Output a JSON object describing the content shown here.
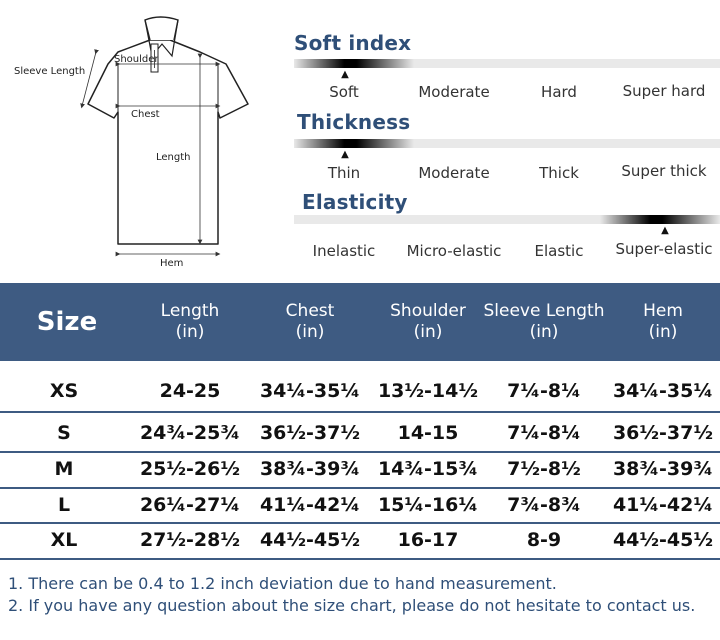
{
  "diagram": {
    "labels": {
      "sleeve_length": "Sleeve Length",
      "shoulder": "Shoulder",
      "chest": "Chest",
      "length": "Length",
      "hem": "Hem"
    }
  },
  "indices": [
    {
      "title": "Soft index",
      "options": [
        "Soft",
        "Moderate",
        "Hard",
        "Super hard"
      ],
      "selected_index": 0
    },
    {
      "title": "Thickness",
      "options": [
        "Thin",
        "Moderate",
        "Thick",
        "Super thick"
      ],
      "selected_index": 0
    },
    {
      "title": "Elasticity",
      "options": [
        "Inelastic",
        "Micro-elastic",
        "Elastic",
        "Super-elastic"
      ],
      "selected_index": 3
    }
  ],
  "table": {
    "headers": [
      {
        "line1": "Size",
        "line2": ""
      },
      {
        "line1": "Length",
        "line2": "(in)"
      },
      {
        "line1": "Chest",
        "line2": "(in)"
      },
      {
        "line1": "Shoulder",
        "line2": "(in)"
      },
      {
        "line1": "Sleeve Length",
        "line2": "(in)"
      },
      {
        "line1": "Hem",
        "line2": "(in)"
      }
    ],
    "rows": [
      [
        "XS",
        "24-25",
        "34¼-35¼",
        "13½-14½",
        "7¼-8¼",
        "34¼-35¼"
      ],
      [
        "S",
        "24¾-25¾",
        "36½-37½",
        "14-15",
        "7¼-8¼",
        "36½-37½"
      ],
      [
        "M",
        "25½-26½",
        "38¾-39¾",
        "14¾-15¾",
        "7½-8½",
        "38¾-39¾"
      ],
      [
        "L",
        "26¼-27¼",
        "41¼-42¼",
        "15¼-16¼",
        "7¾-8¾",
        "41¼-42¼"
      ],
      [
        "XL",
        "27½-28½",
        "44½-45½",
        "16-17",
        "8-9",
        "44½-45½"
      ]
    ]
  },
  "notes": [
    "1. There can be 0.4 to 1.2 inch deviation due to hand measurement.",
    "2. If you have any question about the size chart, please do not hesitate to contact us."
  ]
}
